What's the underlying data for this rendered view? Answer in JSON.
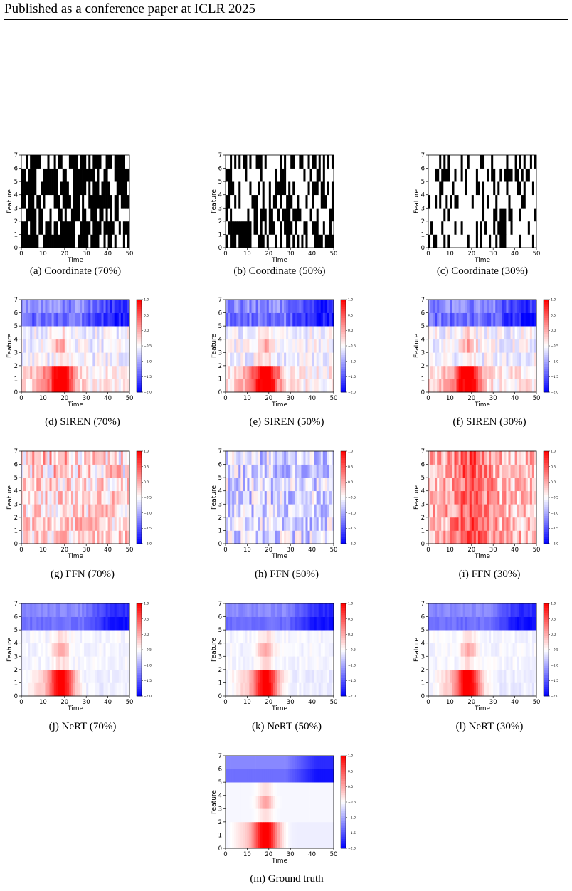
{
  "header": "Published as a conference paper at ICLR 2025",
  "colors": {
    "mask_observed": "#ffffff",
    "mask_missing": "#000000",
    "colormap": "bwr",
    "cmap_low": "#0000ff",
    "cmap_mid": "#ffffff",
    "cmap_high": "#ff0000"
  },
  "axes": {
    "xlabel": "Time",
    "ylabel": "Feature",
    "xticks": [
      0,
      10,
      20,
      30,
      40,
      50
    ],
    "yticks": [
      0,
      1,
      2,
      3,
      4,
      5,
      6,
      7
    ],
    "colorbar_ticks": [
      1.0,
      0.5,
      0.0,
      -0.5,
      -1.0,
      -1.5,
      -2.0
    ],
    "colorbar_tick_labels": [
      "1.0",
      "0.5",
      "0.0",
      "−0.5",
      "−1.0",
      "−1.5",
      "−2.0"
    ]
  },
  "chart_data": [
    {
      "type": "heatmap",
      "kind": "mask",
      "caption": "(a) Coordinate (70%)",
      "xlim": [
        0,
        50
      ],
      "ylim": [
        0,
        7
      ]
    },
    {
      "type": "heatmap",
      "kind": "mask",
      "caption": "(b) Coordinate (50%)",
      "xlim": [
        0,
        50
      ],
      "ylim": [
        0,
        7
      ]
    },
    {
      "type": "heatmap",
      "kind": "mask",
      "caption": "(c) Coordinate (30%)",
      "xlim": [
        0,
        50
      ],
      "ylim": [
        0,
        7
      ]
    },
    {
      "type": "heatmap",
      "kind": "siren",
      "caption": "(d) SIREN (70%)",
      "xlim": [
        0,
        50
      ],
      "ylim": [
        0,
        7
      ],
      "clim": [
        -2.0,
        1.0
      ]
    },
    {
      "type": "heatmap",
      "kind": "siren",
      "caption": "(e) SIREN (50%)",
      "xlim": [
        0,
        50
      ],
      "ylim": [
        0,
        7
      ],
      "clim": [
        -2.0,
        1.0
      ]
    },
    {
      "type": "heatmap",
      "kind": "siren",
      "caption": "(f) SIREN (30%)",
      "xlim": [
        0,
        50
      ],
      "ylim": [
        0,
        7
      ],
      "clim": [
        -2.0,
        1.0
      ]
    },
    {
      "type": "heatmap",
      "kind": "ffn",
      "caption": "(g) FFN (70%)",
      "xlim": [
        0,
        50
      ],
      "ylim": [
        0,
        7
      ],
      "clim": [
        -2.0,
        1.0
      ]
    },
    {
      "type": "heatmap",
      "kind": "ffn",
      "caption": "(h) FFN (50%)",
      "xlim": [
        0,
        50
      ],
      "ylim": [
        0,
        7
      ],
      "clim": [
        -2.0,
        1.0
      ]
    },
    {
      "type": "heatmap",
      "kind": "ffn",
      "caption": "(i) FFN (30%)",
      "xlim": [
        0,
        50
      ],
      "ylim": [
        0,
        7
      ],
      "clim": [
        -2.0,
        1.0
      ]
    },
    {
      "type": "heatmap",
      "kind": "nert",
      "caption": "(j) NeRT (70%)",
      "xlim": [
        0,
        50
      ],
      "ylim": [
        0,
        7
      ],
      "clim": [
        -2.0,
        1.0
      ]
    },
    {
      "type": "heatmap",
      "kind": "nert",
      "caption": "(k) NeRT (50%)",
      "xlim": [
        0,
        50
      ],
      "ylim": [
        0,
        7
      ],
      "clim": [
        -2.0,
        1.0
      ]
    },
    {
      "type": "heatmap",
      "kind": "nert",
      "caption": "(l) NeRT (30%)",
      "xlim": [
        0,
        50
      ],
      "ylim": [
        0,
        7
      ],
      "clim": [
        -2.0,
        1.0
      ]
    },
    {
      "type": "heatmap",
      "kind": "gt",
      "caption": "(m) Ground truth",
      "xlim": [
        0,
        50
      ],
      "ylim": [
        0,
        7
      ],
      "clim": [
        -2.0,
        1.0
      ]
    }
  ]
}
